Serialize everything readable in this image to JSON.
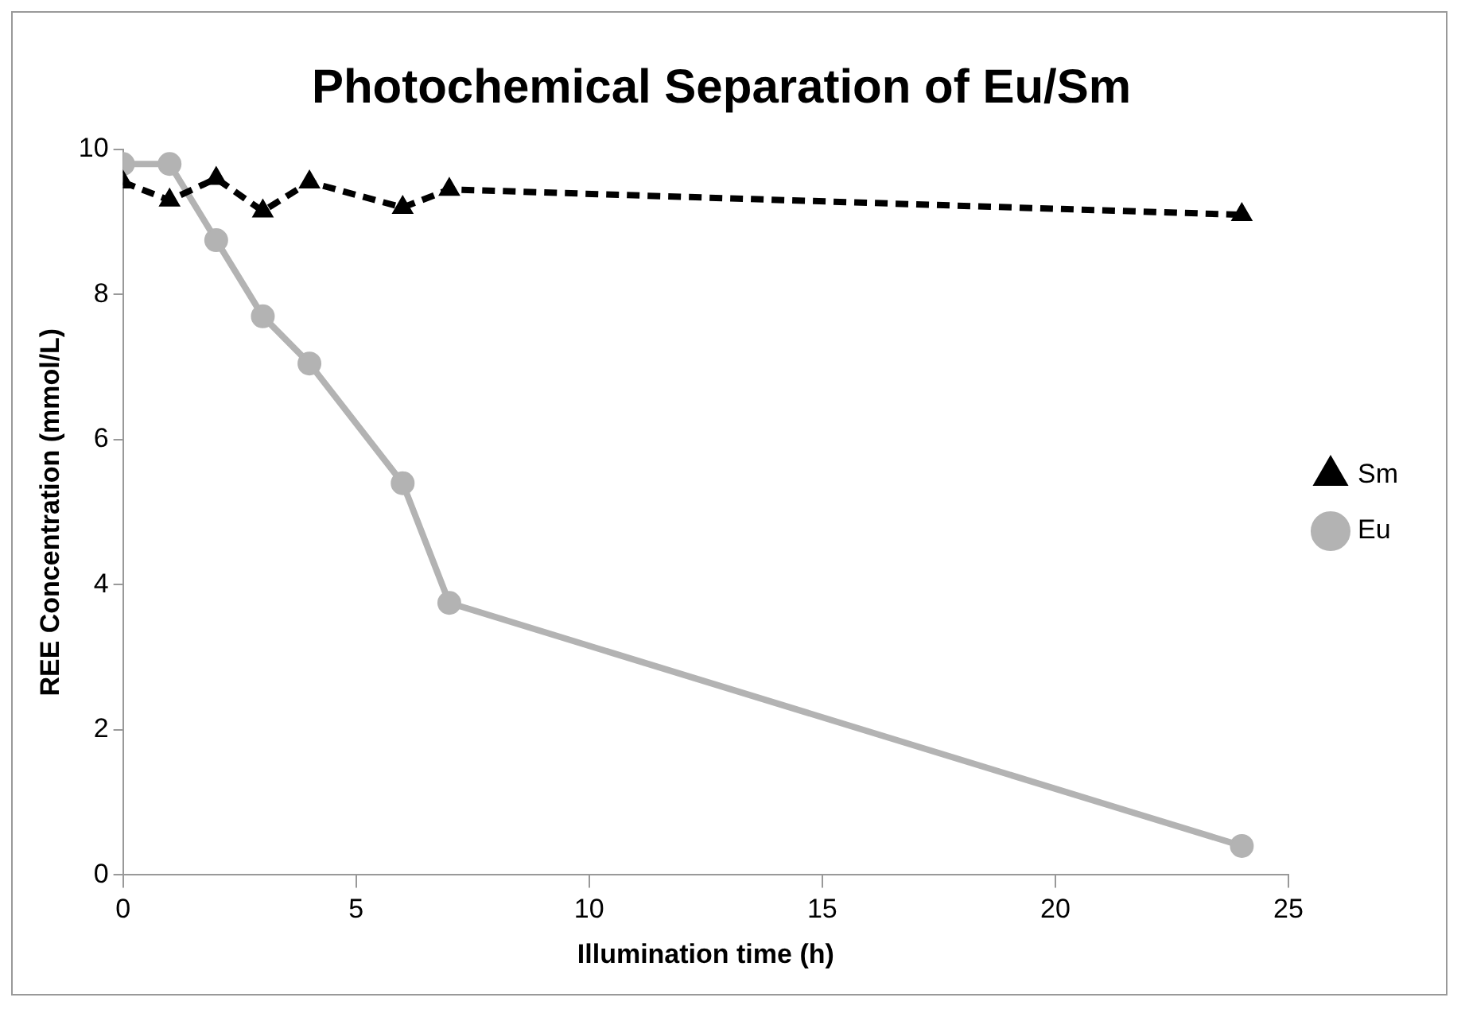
{
  "chart_data": {
    "type": "line",
    "title": "Photochemical Separation of Eu/Sm",
    "xlabel": "Illumination time (h)",
    "ylabel": "REE Concentration (mmol/L)",
    "xlim": [
      0,
      25
    ],
    "xticks": [
      0,
      5,
      10,
      15,
      20,
      25
    ],
    "ylim": [
      0,
      10
    ],
    "yticks": [
      0,
      2,
      4,
      6,
      8,
      10
    ],
    "grid": false,
    "legend": "right",
    "series": [
      {
        "name": "Sm",
        "color": "#000000",
        "marker": "triangle",
        "line_style": "dashed",
        "x": [
          0,
          1,
          2,
          3,
          4,
          6,
          7,
          24
        ],
        "values": [
          9.55,
          9.3,
          9.6,
          9.15,
          9.55,
          9.2,
          9.45,
          9.1
        ]
      },
      {
        "name": "Eu",
        "color": "#b3b3b3",
        "marker": "circle",
        "line_style": "solid",
        "x": [
          0,
          1,
          2,
          3,
          4,
          6,
          7,
          24
        ],
        "values": [
          9.8,
          9.8,
          8.75,
          7.7,
          7.05,
          5.4,
          3.75,
          0.4
        ]
      }
    ]
  }
}
